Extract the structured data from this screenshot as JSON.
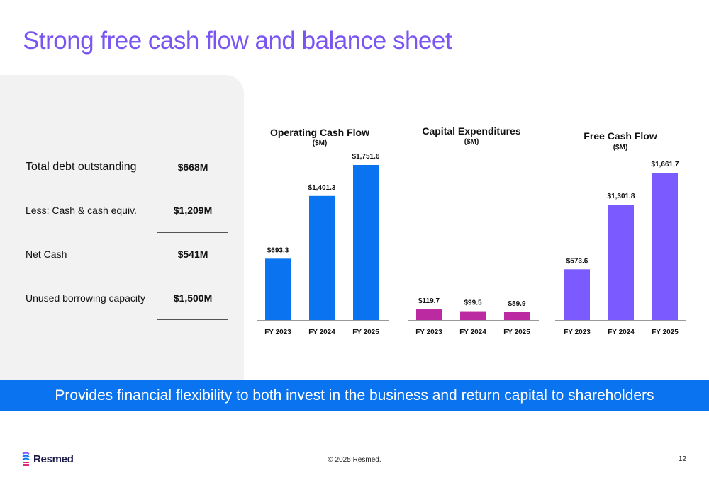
{
  "title": "Strong free cash flow and balance sheet",
  "metrics": [
    {
      "label": "Total debt outstanding",
      "value": "$668M"
    },
    {
      "label": "Less: Cash & cash equiv.",
      "value": "$1,209M"
    },
    {
      "label": "Net Cash",
      "value": "$541M"
    },
    {
      "label": "Unused borrowing capacity",
      "value": "$1,500M"
    }
  ],
  "banner": "Provides financial flexibility to both invest in the business and return capital to shareholders",
  "footer": {
    "brand": "Resmed",
    "copyright": "© 2025 Resmed.",
    "page": "12"
  },
  "colors": {
    "title": "#7a55f2",
    "banner": "#0a74f0",
    "ocf": "#0a74f0",
    "capex": "#bb2aa0",
    "fcf": "#7b5bff"
  },
  "chart_data": [
    {
      "type": "bar",
      "title": "Operating Cash Flow",
      "unit": "($M)",
      "categories": [
        "FY 2023",
        "FY 2024",
        "FY 2025"
      ],
      "values": [
        693.3,
        1401.3,
        1751.6
      ],
      "labels": [
        "$693.3",
        "$1,401.3",
        "$1,751.6"
      ],
      "color": "#0a74f0"
    },
    {
      "type": "bar",
      "title": "Capital Expenditures",
      "unit": "($M)",
      "categories": [
        "FY 2023",
        "FY 2024",
        "FY 2025"
      ],
      "values": [
        119.7,
        99.5,
        89.9
      ],
      "labels": [
        "$119.7",
        "$99.5",
        "$89.9"
      ],
      "color": "#bb2aa0"
    },
    {
      "type": "bar",
      "title": "Free Cash Flow",
      "unit": "($M)",
      "categories": [
        "FY 2023",
        "FY 2024",
        "FY 2025"
      ],
      "values": [
        573.6,
        1301.8,
        1661.7
      ],
      "labels": [
        "$573.6",
        "$1,301.8",
        "$1,661.7"
      ],
      "color": "#7b5bff"
    }
  ]
}
